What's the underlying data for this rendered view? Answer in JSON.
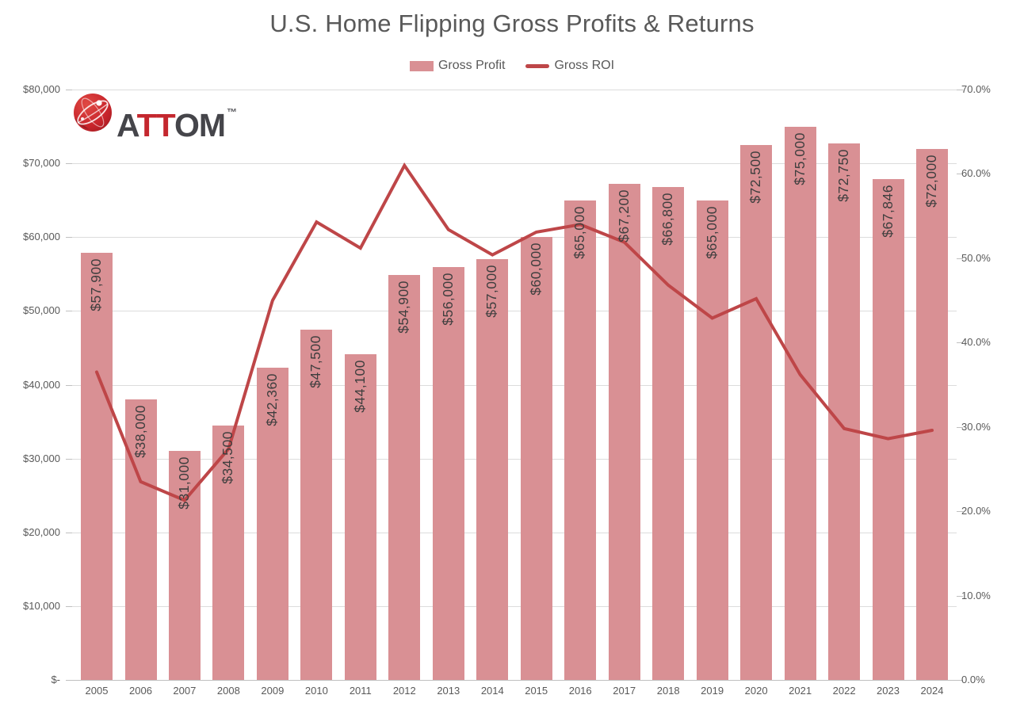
{
  "title": "U.S. Home Flipping Gross Profits & Returns",
  "legend": {
    "items": [
      {
        "label": "Gross Profit",
        "marker": "bar-swatch",
        "color": "#D99094"
      },
      {
        "label": "Gross ROI",
        "marker": "line-swatch",
        "color": "#BE4648"
      }
    ]
  },
  "logo": {
    "name": "ATTOM",
    "parts": [
      {
        "text": "A",
        "color": "#45454A"
      },
      {
        "text": "TT",
        "color": "#C4272E"
      },
      {
        "text": "OM",
        "color": "#45454A"
      }
    ],
    "trademark": "™"
  },
  "chart_data": {
    "type": "combo-bar-line",
    "title": "U.S. Home Flipping Gross Profits & Returns",
    "legend_position": "top-center",
    "grid": "horizontal gridlines at left-axis steps",
    "categories": [
      "2005",
      "2006",
      "2007",
      "2008",
      "2009",
      "2010",
      "2011",
      "2012",
      "2013",
      "2014",
      "2015",
      "2016",
      "2017",
      "2018",
      "2019",
      "2020",
      "2021",
      "2022",
      "2023",
      "2024"
    ],
    "series": [
      {
        "name": "Gross Profit",
        "type": "bar",
        "axis": "left",
        "color": "#D99094",
        "values": [
          57900,
          38000,
          31000,
          34500,
          42360,
          47500,
          44100,
          54900,
          56000,
          57000,
          60000,
          65000,
          67200,
          66800,
          65000,
          72500,
          75000,
          72750,
          67846,
          72000
        ],
        "labels": [
          "$57,900",
          "$38,000",
          "$31,000",
          "$34,500",
          "$42,360",
          "$47,500",
          "$44,100",
          "$54,900",
          "$56,000",
          "$57,000",
          "$60,000",
          "$65,000",
          "$67,200",
          "$66,800",
          "$65,000",
          "$72,500",
          "$75,000",
          "$72,750",
          "$67,846",
          "$72,000"
        ]
      },
      {
        "name": "Gross ROI",
        "type": "line",
        "axis": "right",
        "color": "#BE4648",
        "values_pct": [
          36.5,
          23.5,
          21.3,
          27.4,
          45.0,
          54.3,
          51.2,
          61.0,
          53.4,
          50.4,
          53.1,
          54.0,
          51.9,
          46.8,
          42.9,
          45.2,
          36.2,
          29.8,
          28.6,
          29.6
        ]
      }
    ],
    "left_axis": {
      "min": 0,
      "max": 80000,
      "tick_step": 10000,
      "tick_labels": [
        "$-",
        "$10,000",
        "$20,000",
        "$30,000",
        "$40,000",
        "$50,000",
        "$60,000",
        "$70,000",
        "$80,000"
      ]
    },
    "right_axis": {
      "min": 0,
      "max": 70,
      "tick_step": 10,
      "tick_labels": [
        "0.0%",
        "10.0%",
        "20.0%",
        "30.0%",
        "40.0%",
        "50.0%",
        "60.0%",
        "70.0%"
      ]
    }
  }
}
